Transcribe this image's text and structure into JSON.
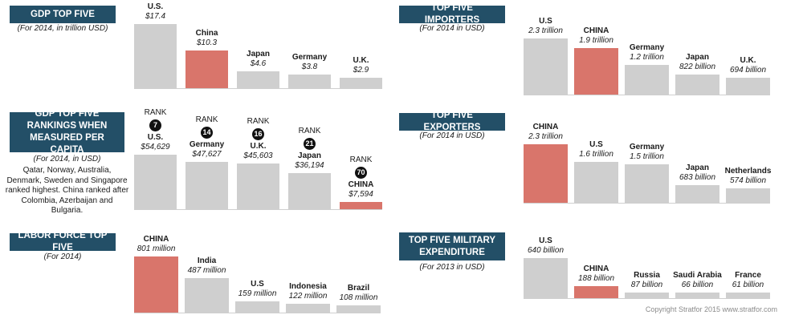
{
  "colors": {
    "header": "#234f67",
    "highlight": "#d9756b",
    "bar": "#cfcfcf"
  },
  "chart_data": [
    {
      "type": "bar",
      "title": "GDP TOP FIVE",
      "subtitle": "(For 2014, in trillion USD)",
      "categories": [
        "U.S.",
        "China",
        "Japan",
        "Germany",
        "U.K."
      ],
      "values": [
        17.4,
        10.3,
        4.6,
        3.8,
        2.9
      ],
      "value_labels": [
        "$17.4",
        "$10.3",
        "$4.6",
        "$3.8",
        "$2.9"
      ],
      "highlight": "China"
    },
    {
      "type": "bar",
      "title": "GDP TOP FIVE RANKINGS WHEN MEASURED PER CAPITA",
      "subtitle": "(For 2014, in USD)",
      "note": "Qatar, Norway, Australia, Denmark, Sweden and Singapore ranked highest. China ranked after Colombia, Azerbaijan and Bulgaria.",
      "rank_word": "RANK",
      "categories": [
        "U.S.",
        "Germany",
        "U.K.",
        "Japan",
        "CHINA"
      ],
      "ranks": [
        "7",
        "14",
        "16",
        "21",
        "70"
      ],
      "values": [
        54629,
        47627,
        45603,
        36194,
        7594
      ],
      "value_labels": [
        "$54,629",
        "$47,627",
        "$45,603",
        "$36,194",
        "$7,594"
      ],
      "highlight": "CHINA"
    },
    {
      "type": "bar",
      "title": "LABOR FORCE TOP FIVE",
      "subtitle": "(For 2014)",
      "categories": [
        "CHINA",
        "India",
        "U.S",
        "Indonesia",
        "Brazil"
      ],
      "values": [
        801,
        487,
        159,
        122,
        108
      ],
      "value_labels": [
        "801 million",
        "487 million",
        "159 million",
        "122 million",
        "108 million"
      ],
      "highlight": "CHINA"
    },
    {
      "type": "bar",
      "title": "TOP FIVE IMPORTERS",
      "subtitle": "(For 2014 in USD)",
      "categories": [
        "U.S",
        "CHINA",
        "Germany",
        "Japan",
        "U.K."
      ],
      "values": [
        2.3,
        1.9,
        1.2,
        0.822,
        0.694
      ],
      "value_labels": [
        "2.3 trillion",
        "1.9 trillion",
        "1.2 trillion",
        "822 billion",
        "694 billion"
      ],
      "highlight": "CHINA"
    },
    {
      "type": "bar",
      "title": "TOP FIVE EXPORTERS",
      "subtitle": "(For 2014 in USD)",
      "categories": [
        "CHINA",
        "U.S",
        "Germany",
        "Japan",
        "Netherlands"
      ],
      "values": [
        2.3,
        1.6,
        1.5,
        0.683,
        0.574
      ],
      "value_labels": [
        "2.3 trillion",
        "1.6 trillion",
        "1.5 trillion",
        "683 billion",
        "574 billion"
      ],
      "highlight": "CHINA"
    },
    {
      "type": "bar",
      "title": "TOP FIVE MILITARY EXPENDITURE",
      "subtitle": "(For 2013 in USD)",
      "categories": [
        "U.S",
        "CHINA",
        "Russia",
        "Saudi Arabia",
        "France"
      ],
      "values": [
        640,
        188,
        87,
        66,
        61
      ],
      "value_labels": [
        "640 billion",
        "188 billion",
        "87 billion",
        "66 billion",
        "61 billion"
      ],
      "highlight": "CHINA"
    }
  ],
  "footer": "Copyright Stratfor 2015   www.stratfor.com"
}
